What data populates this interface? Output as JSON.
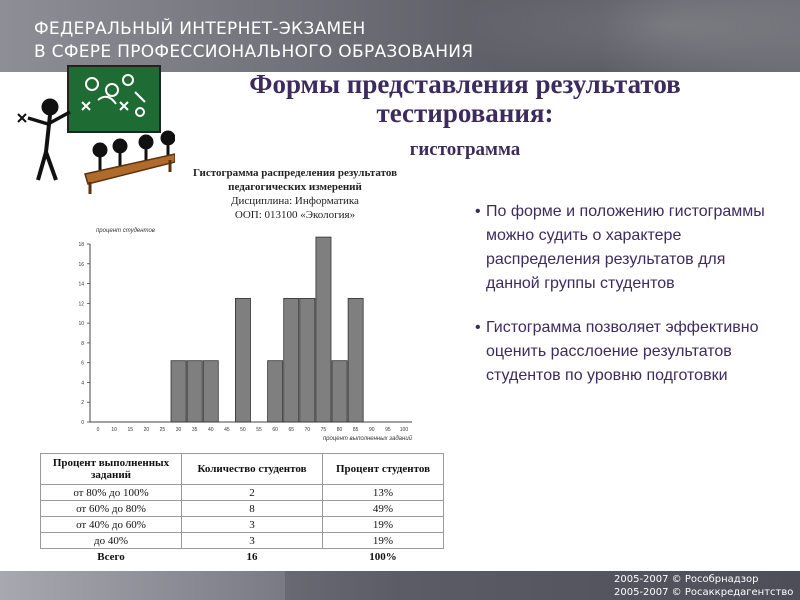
{
  "header": {
    "line1": "ФЕДЕРАЛЬНЫЙ ИНТЕРНЕТ-ЭКЗАМЕН",
    "line2": "В СФЕРЕ ПРОФЕССИОНАЛЬНОГО ОБРАЗОВАНИЯ"
  },
  "title": {
    "line1": "Формы представления результатов",
    "line2": "тестирования:",
    "subtitle": "гистограмма"
  },
  "chart_caption": {
    "line1": "Гистограмма распределения результатов",
    "line2": "педагогических измерений",
    "line3": "Дисциплина: Информатика",
    "line4": "ООП: 013100 «Экология»"
  },
  "chart_data": {
    "type": "bar",
    "ylabel": "процент студентов",
    "xlabel": "процент выполненных заданий",
    "ylim": [
      0,
      18
    ],
    "yticks": [
      "0",
      "2",
      "4",
      "6",
      "8",
      "10",
      "12",
      "14",
      "16",
      "18"
    ],
    "categories": [
      "0",
      "10",
      "15",
      "20",
      "25",
      "30",
      "35",
      "40",
      "45",
      "50",
      "55",
      "60",
      "65",
      "70",
      "75",
      "80",
      "85",
      "90",
      "95",
      "100"
    ],
    "values": [
      0,
      0,
      0,
      0,
      0,
      6.2,
      6.2,
      6.2,
      0,
      12.5,
      0,
      6.2,
      12.5,
      12.5,
      18.7,
      6.2,
      12.5,
      0,
      0,
      0
    ]
  },
  "bullets": [
    "По форме и положению гистограммы можно судить о характере распределения результатов для данной группы студентов",
    "Гистограмма позволяет эффективно оценить расслоение результатов студентов по уровню подготовки"
  ],
  "table": {
    "headers": [
      "Процент выполненных заданий",
      "Количество студентов",
      "Процент студентов"
    ],
    "rows": [
      [
        "от 80% до 100%",
        "2",
        "13%"
      ],
      [
        "от 60% до 80%",
        "8",
        "49%"
      ],
      [
        "от 40% до 60%",
        "3",
        "19%"
      ],
      [
        "до 40%",
        "3",
        "19%"
      ]
    ],
    "total": [
      "Всего",
      "16",
      "100%"
    ]
  },
  "footer": {
    "line1": "2005-2007 © Рособрнадзор",
    "line2": "2005-2007 © Росаккредагентство"
  },
  "colors": {
    "title": "#3d2b5e",
    "bar_fill": "#7f7f7f",
    "header_bg": "#6b6b74"
  }
}
